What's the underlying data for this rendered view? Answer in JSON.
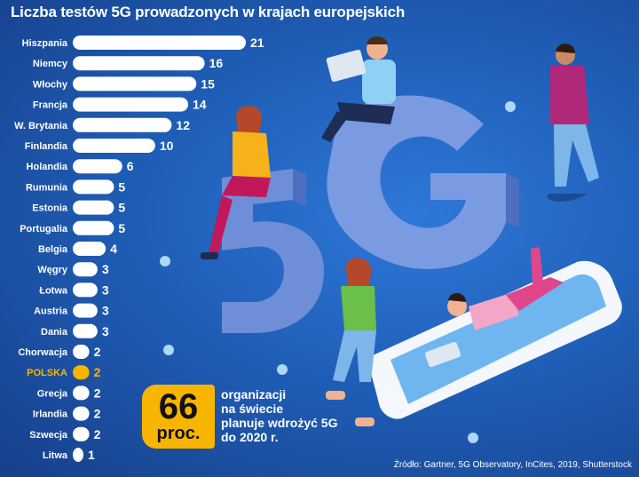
{
  "chart_data": {
    "type": "bar",
    "orientation": "horizontal",
    "title": "Liczba testów 5G prowadzonych w krajach europejskich",
    "categories": [
      "Hiszpania",
      "Niemcy",
      "Włochy",
      "Francja",
      "W. Brytania",
      "Finlandia",
      "Holandia",
      "Rumunia",
      "Estonia",
      "Portugalia",
      "Belgia",
      "Węgry",
      "Łotwa",
      "Austria",
      "Dania",
      "Chorwacja",
      "POLSKA",
      "Grecja",
      "Irlandia",
      "Szwecja",
      "Litwa"
    ],
    "values": [
      21,
      16,
      15,
      14,
      12,
      10,
      6,
      5,
      5,
      5,
      4,
      3,
      3,
      3,
      3,
      2,
      2,
      2,
      2,
      2,
      1
    ],
    "highlight": "POLSKA",
    "xlim": [
      0,
      21
    ]
  },
  "colors": {
    "bar": "#ffffff",
    "highlight": "#f7b500",
    "text": "#ffffff",
    "background": "#1f5fb8"
  },
  "callout": {
    "number": "66",
    "unit": "proc.",
    "lines": [
      "organizacji",
      "na świecie",
      "planuje wdrożyć 5G",
      "do 2020 r."
    ]
  },
  "source": "Źródło: Gartner, 5G Observatory, InCites, 2019, Shutterstock"
}
